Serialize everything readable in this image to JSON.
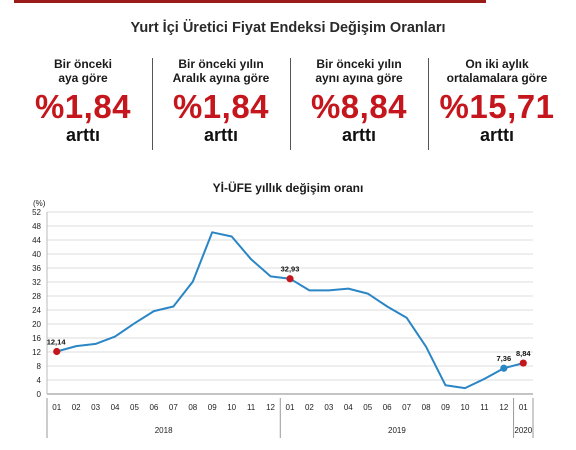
{
  "header": {
    "title": "Yurt İçi Üretici Fiyat Endeksi Değişim Oranları"
  },
  "stats": [
    {
      "label": "Bir önceki\naya göre",
      "value": "%1,84",
      "word": "arttı"
    },
    {
      "label": "Bir önceki yılın\nAralık ayına göre",
      "value": "%1,84",
      "word": "arttı"
    },
    {
      "label": "Bir önceki yılın\naynı ayına göre",
      "value": "%8,84",
      "word": "arttı"
    },
    {
      "label": "On iki aylık\nortalamalara göre",
      "value": "%15,71",
      "word": "arttı"
    }
  ],
  "colors": {
    "accent_red": "#c4161c",
    "line": "#2b86c5",
    "point_red": "#c4161c",
    "point_blue": "#2b86c5",
    "grid": "#dcdcdc"
  },
  "chart_data": {
    "type": "line",
    "title": "Yİ-ÜFE yıllık değişim oranı",
    "ylabel": "(%)",
    "xlabel": "",
    "ylim": [
      0,
      52
    ],
    "yticks": [
      0,
      4,
      8,
      12,
      16,
      20,
      24,
      28,
      32,
      36,
      40,
      44,
      48,
      52
    ],
    "grid": "horizontal",
    "x": [
      "01",
      "02",
      "03",
      "04",
      "05",
      "06",
      "07",
      "08",
      "09",
      "10",
      "11",
      "12",
      "01",
      "02",
      "03",
      "04",
      "05",
      "06",
      "07",
      "08",
      "09",
      "10",
      "11",
      "12",
      "01"
    ],
    "years": [
      {
        "label": "2018",
        "start": 0,
        "end": 11
      },
      {
        "label": "2019",
        "start": 12,
        "end": 23
      },
      {
        "label": "2020",
        "start": 24,
        "end": 24
      }
    ],
    "series": [
      {
        "values": [
          12.14,
          13.7,
          14.3,
          16.4,
          20.2,
          23.7,
          25.0,
          32.1,
          46.2,
          45.0,
          38.5,
          33.6,
          32.93,
          29.6,
          29.6,
          30.1,
          28.7,
          25.0,
          21.8,
          13.5,
          2.5,
          1.7,
          4.3,
          7.36,
          8.84
        ]
      }
    ],
    "annotations": [
      {
        "index": 0,
        "label": "12,14",
        "color": "#c4161c"
      },
      {
        "index": 12,
        "label": "32,93",
        "color": "#c4161c"
      },
      {
        "index": 23,
        "label": "7,36",
        "color": "#2b86c5"
      },
      {
        "index": 24,
        "label": "8,84",
        "color": "#c4161c"
      }
    ]
  }
}
